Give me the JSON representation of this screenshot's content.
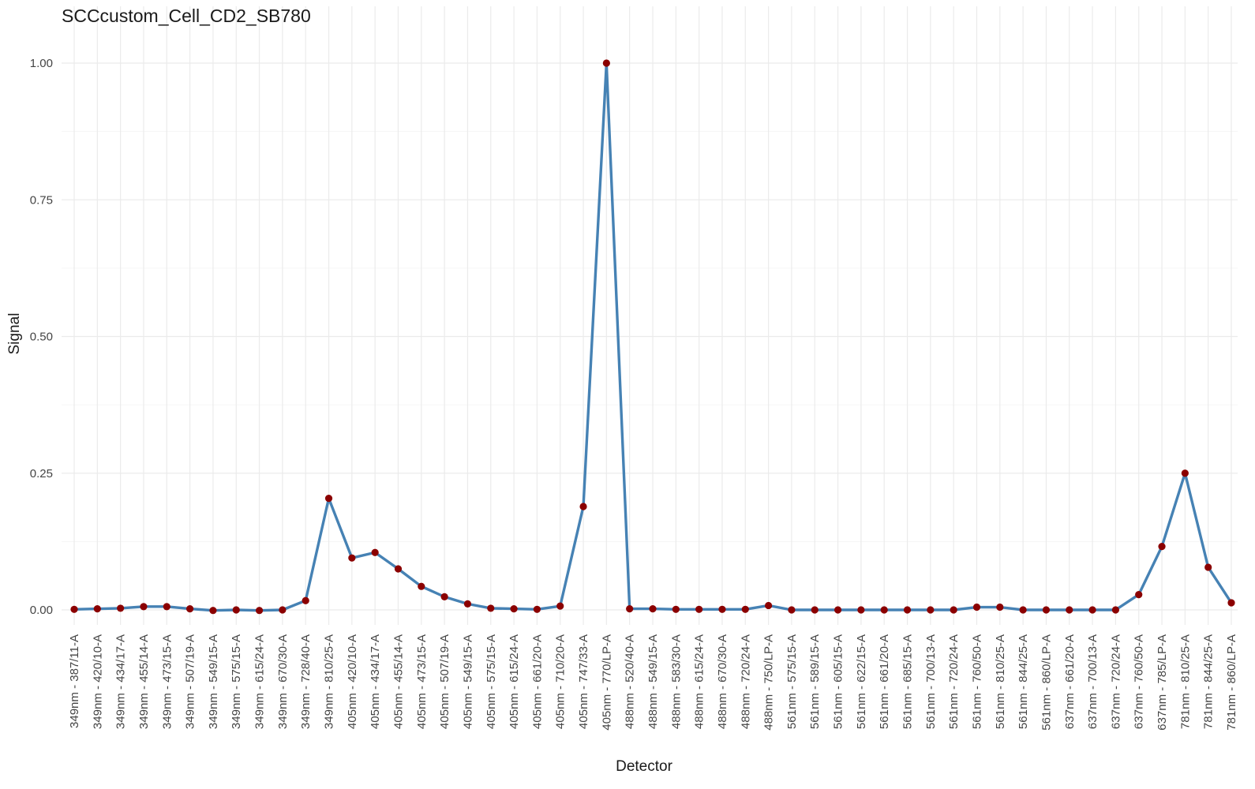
{
  "chart_data": {
    "type": "line",
    "title": "SCCcustom_Cell_CD2_SB780",
    "xlabel": "Detector",
    "ylabel": "Signal",
    "ylim": [
      0,
      1.0
    ],
    "y_ticks": [
      0.0,
      0.25,
      0.5,
      0.75,
      1.0
    ],
    "y_tick_labels": [
      "0.00",
      "0.25",
      "0.50",
      "0.75",
      "1.00"
    ],
    "grid": true,
    "legend": "none",
    "colors": {
      "line": "#4682b4",
      "point": "#8b0000",
      "grid": "#ebebeb"
    },
    "categories": [
      "349nm - 387/11-A",
      "349nm - 420/10-A",
      "349nm - 434/17-A",
      "349nm - 455/14-A",
      "349nm - 473/15-A",
      "349nm - 507/19-A",
      "349nm - 549/15-A",
      "349nm - 575/15-A",
      "349nm - 615/24-A",
      "349nm - 670/30-A",
      "349nm - 728/40-A",
      "349nm - 810/25-A",
      "405nm - 420/10-A",
      "405nm - 434/17-A",
      "405nm - 455/14-A",
      "405nm - 473/15-A",
      "405nm - 507/19-A",
      "405nm - 549/15-A",
      "405nm - 575/15-A",
      "405nm - 615/24-A",
      "405nm - 661/20-A",
      "405nm - 710/20-A",
      "405nm - 747/33-A",
      "405nm - 770/LP-A",
      "488nm - 520/40-A",
      "488nm - 549/15-A",
      "488nm - 583/30-A",
      "488nm - 615/24-A",
      "488nm - 670/30-A",
      "488nm - 720/24-A",
      "488nm - 750/LP-A",
      "561nm - 575/15-A",
      "561nm - 589/15-A",
      "561nm - 605/15-A",
      "561nm - 622/15-A",
      "561nm - 661/20-A",
      "561nm - 685/15-A",
      "561nm - 700/13-A",
      "561nm - 720/24-A",
      "561nm - 760/50-A",
      "561nm - 810/25-A",
      "561nm - 844/25-A",
      "561nm - 860/LP-A",
      "637nm - 661/20-A",
      "637nm - 700/13-A",
      "637nm - 720/24-A",
      "637nm - 760/50-A",
      "637nm - 785/LP-A",
      "781nm - 810/25-A",
      "781nm - 844/25-A",
      "781nm - 860/LP-A"
    ],
    "series": [
      {
        "values": [
          0.001,
          0.002,
          0.003,
          0.006,
          0.006,
          0.002,
          -0.001,
          0.0,
          -0.001,
          0.0,
          0.017,
          0.204,
          0.095,
          0.105,
          0.075,
          0.043,
          0.024,
          0.011,
          0.003,
          0.002,
          0.001,
          0.007,
          0.189,
          1.0,
          0.002,
          0.002,
          0.001,
          0.001,
          0.001,
          0.001,
          0.008,
          0.0,
          0.0,
          0.0,
          0.0,
          0.0,
          0.0,
          0.0,
          0.0,
          0.005,
          0.005,
          0.0,
          0.0,
          0.0,
          0.0,
          0.0,
          0.028,
          0.116,
          0.25,
          0.078,
          0.013
        ]
      }
    ]
  }
}
